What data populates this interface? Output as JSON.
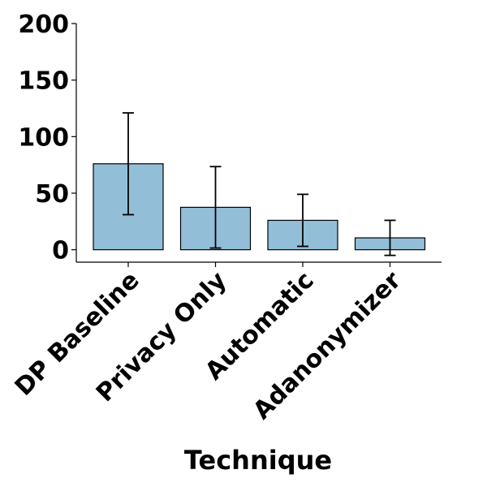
{
  "chart_data": {
    "type": "bar",
    "title": "",
    "xlabel": "Technique",
    "ylabel": "",
    "categories": [
      "DP Baseline",
      "Privacy Only",
      "Automatic",
      "Adanonymizer"
    ],
    "values": [
      76,
      37.5,
      26,
      10.5
    ],
    "error": [
      45,
      36,
      23,
      15.5
    ],
    "ylim": [
      -11,
      200
    ],
    "yticks": [
      0,
      50,
      100,
      150,
      200
    ],
    "grid": false,
    "legend": "none",
    "bar_color": "#93bed8",
    "edge_color": "#000000"
  }
}
